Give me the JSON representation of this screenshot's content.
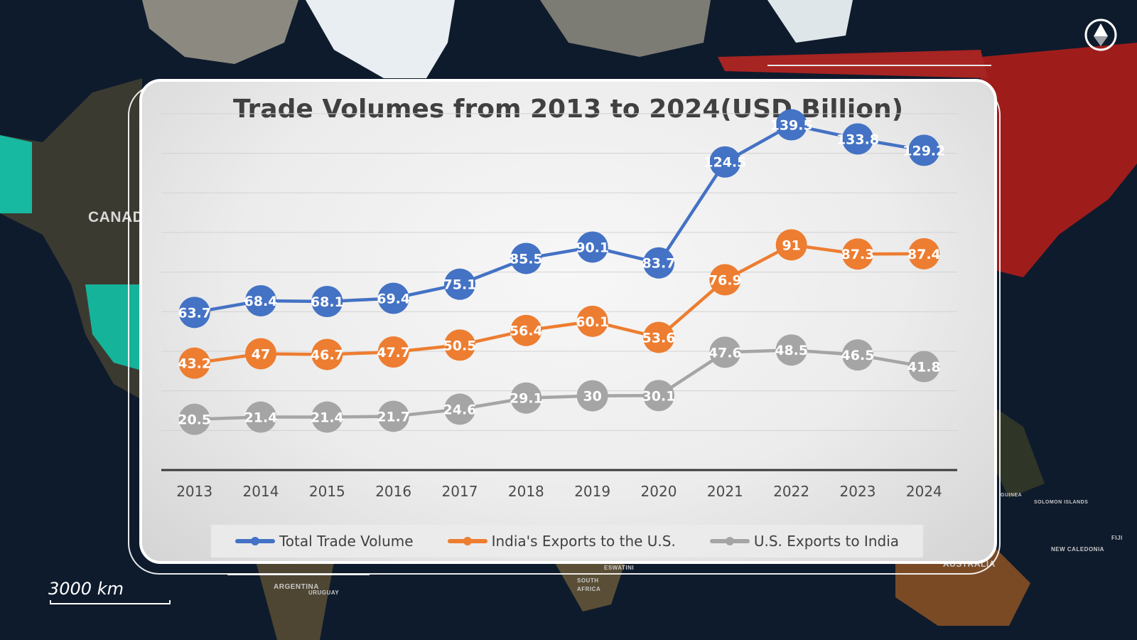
{
  "map": {
    "labels": {
      "canada": "CANADA",
      "argentina": "ARGENTINA",
      "uruguay": "URUGUAY",
      "eswatini": "ESWATINI",
      "south_africa": "SOUTH AFRICA",
      "australia": "AUSTRALIA",
      "new_caledonia": "NEW CALEDONIA",
      "fiji": "FIJI",
      "solomon": "SOLOMON ISLANDS",
      "guinea": "GUINEA"
    },
    "scale_label": "3000 km",
    "colors": {
      "ocean": "#0d1a2c",
      "land": "#3a3a2e",
      "canada_highlight": "#18c4a8",
      "russia_highlight": "#b0201e"
    }
  },
  "chart_data": {
    "type": "line",
    "title": "Trade Volumes from 2013 to 2024(USD Billion)",
    "categories": [
      "2013",
      "2014",
      "2015",
      "2016",
      "2017",
      "2018",
      "2019",
      "2020",
      "2021",
      "2022",
      "2023",
      "2024"
    ],
    "ylim": [
      0,
      160
    ],
    "grid": true,
    "legend_position": "bottom",
    "series": [
      {
        "name": "Total Trade Volume",
        "color": "#4472c4",
        "values": [
          63.7,
          68.4,
          68.1,
          69.4,
          75.1,
          85.5,
          90.1,
          83.7,
          124.5,
          139.5,
          133.8,
          129.2
        ]
      },
      {
        "name": "India's Exports to the U.S.",
        "color": "#ed7d31",
        "values": [
          43.2,
          47,
          46.7,
          47.7,
          50.5,
          56.4,
          60.1,
          53.6,
          76.9,
          91,
          87.3,
          87.4
        ]
      },
      {
        "name": "U.S. Exports to India",
        "color": "#a5a5a5",
        "values": [
          20.5,
          21.4,
          21.4,
          21.7,
          24.6,
          29.1,
          30,
          30.1,
          47.6,
          48.5,
          46.5,
          41.8
        ]
      }
    ]
  }
}
